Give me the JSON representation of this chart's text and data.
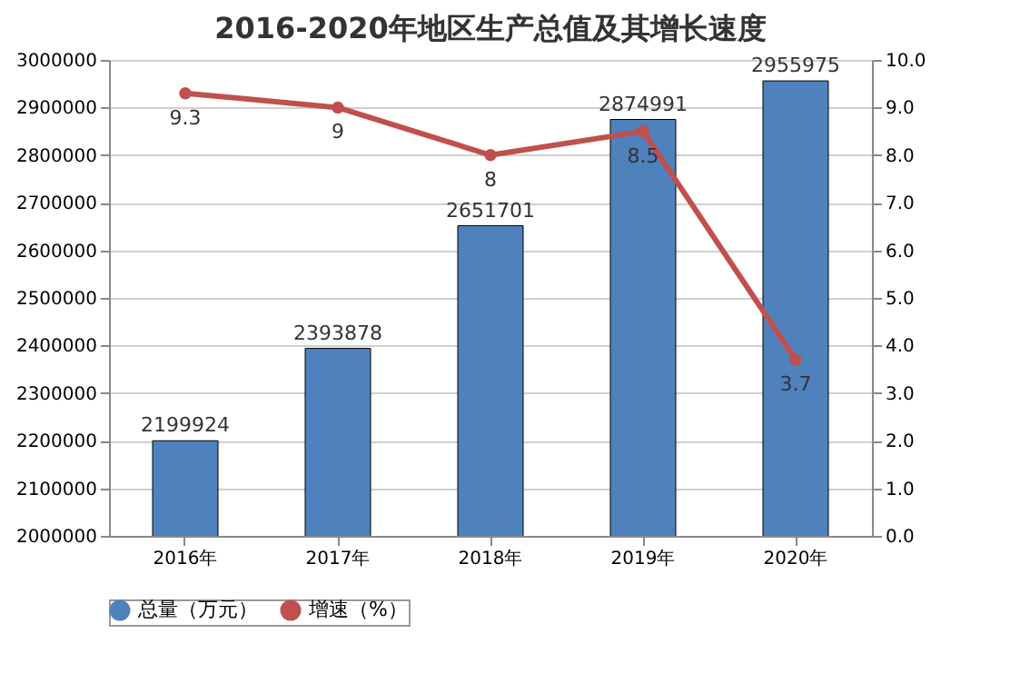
{
  "chart_data": {
    "type": "bar",
    "title": "2016-2020年地区生产总值及其增长速度",
    "categories": [
      "2016年",
      "2017年",
      "2018年",
      "2019年",
      "2020年"
    ],
    "series": [
      {
        "name": "总量（万元）",
        "color": "#4f81bd",
        "values": [
          2199924,
          2393878,
          2651701,
          2874991,
          2955975
        ]
      },
      {
        "name": "增速（%）",
        "type": "line",
        "axis": "y2",
        "color": "#c0504d",
        "values": [
          9.3,
          9,
          8,
          8.5,
          3.7
        ]
      }
    ],
    "ylim": [
      2000000,
      3000000
    ],
    "yticks": [
      2000000,
      2100000,
      2200000,
      2300000,
      2400000,
      2500000,
      2600000,
      2700000,
      2800000,
      2900000,
      3000000
    ],
    "y2lim": [
      0,
      10
    ],
    "y2ticks": [
      {
        "value": 0,
        "label": "0.0"
      },
      {
        "value": 1,
        "label": "1.0"
      },
      {
        "value": 2,
        "label": "2.0"
      },
      {
        "value": 3,
        "label": "3.0"
      },
      {
        "value": 4,
        "label": "4.0"
      },
      {
        "value": 5,
        "label": "5.0"
      },
      {
        "value": 6,
        "label": "6.0"
      },
      {
        "value": 7,
        "label": "7.0"
      },
      {
        "value": 8,
        "label": "8.0"
      },
      {
        "value": 9,
        "label": "9.0"
      },
      {
        "value": 10,
        "label": "10.0"
      }
    ],
    "grid": "y",
    "legend": "bottom",
    "marker": "circle",
    "data_labels": true
  }
}
